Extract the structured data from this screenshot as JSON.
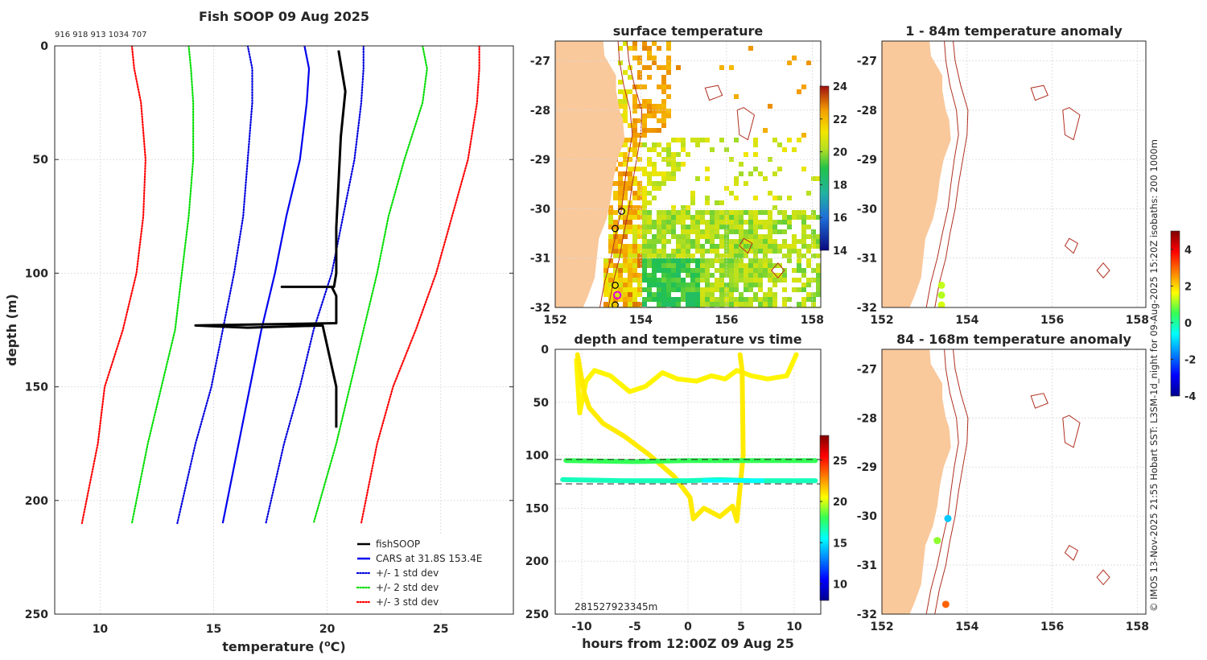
{
  "figure": {
    "credit": "© IMOS 13-Nov-2025 21:55 Hobart SST: L3SM-1d_night for 09-Aug-2025 15:20Z isobaths: 200  1000m"
  },
  "chart_data": [
    {
      "id": "profile",
      "type": "line",
      "title": "Fish SOOP 09 Aug 2025",
      "subtitle": "916 918 913 1034 707",
      "xlabel": "temperature (°C)",
      "ylabel": "depth (m)",
      "xlim": [
        8,
        28.2
      ],
      "ylim": [
        250,
        0
      ],
      "xticks": [
        10,
        15,
        20,
        25
      ],
      "yticks": [
        0,
        50,
        100,
        150,
        200,
        250
      ],
      "grid": true,
      "legend_position": "bottom-right",
      "series": [
        {
          "name": "+/- 3 std dev",
          "color": "#ff0000",
          "style": "dotted",
          "depth": [
            0,
            10,
            25,
            50,
            75,
            100,
            125,
            150,
            175,
            210
          ],
          "temp": [
            11.4,
            11.5,
            11.8,
            12.0,
            11.9,
            11.6,
            11.0,
            10.2,
            9.9,
            9.2
          ]
        },
        {
          "name": "+/- 2 std dev",
          "color": "#00dd00",
          "style": "dotted",
          "depth": [
            0,
            10,
            25,
            50,
            75,
            100,
            125,
            150,
            175,
            210
          ],
          "temp": [
            13.9,
            14.0,
            14.1,
            14.1,
            13.9,
            13.6,
            13.3,
            12.7,
            12.1,
            11.4
          ]
        },
        {
          "name": "+/- 1 std dev",
          "color": "#0000dd",
          "style": "dotted",
          "depth": [
            0,
            10,
            25,
            50,
            75,
            100,
            125,
            150,
            175,
            210
          ],
          "temp": [
            16.5,
            16.7,
            16.7,
            16.5,
            16.3,
            15.9,
            15.4,
            14.9,
            14.2,
            13.4
          ]
        },
        {
          "name": "CARS at 31.8S 153.4E",
          "color": "#0000ee",
          "style": "solid",
          "depth": [
            0,
            10,
            25,
            50,
            75,
            100,
            125,
            150,
            175,
            210
          ],
          "temp": [
            19.0,
            19.2,
            19.1,
            18.8,
            18.2,
            17.7,
            17.1,
            16.6,
            16.1,
            15.4
          ]
        },
        {
          "name": "+/- 1 std dev (warm)",
          "color": "#0000dd",
          "style": "dotted",
          "depth": [
            0,
            10,
            25,
            50,
            75,
            100,
            125,
            150,
            175,
            210
          ],
          "temp": [
            21.6,
            21.6,
            21.5,
            21.2,
            20.7,
            20.2,
            19.4,
            18.8,
            18.1,
            17.3
          ]
        },
        {
          "name": "+/- 2 std dev (warm)",
          "color": "#00dd00",
          "style": "dotted",
          "depth": [
            0,
            10,
            25,
            50,
            75,
            100,
            125,
            150,
            175,
            210
          ],
          "temp": [
            24.2,
            24.4,
            24.2,
            23.4,
            22.7,
            22.2,
            21.6,
            21.0,
            20.4,
            19.4
          ]
        },
        {
          "name": "+/- 3 std dev (warm)",
          "color": "#ff0000",
          "style": "dotted",
          "depth": [
            0,
            10,
            25,
            50,
            75,
            100,
            125,
            150,
            175,
            210
          ],
          "temp": [
            26.7,
            26.7,
            26.6,
            26.2,
            25.5,
            24.8,
            23.9,
            22.9,
            22.2,
            21.5
          ]
        },
        {
          "name": "fishSOOP",
          "color": "#000000",
          "style": "solid-thick",
          "depth": [
            2,
            20,
            40,
            60,
            80,
            100,
            106,
            106,
            106,
            110,
            122,
            123,
            124,
            123,
            150,
            168
          ],
          "temp": [
            20.5,
            20.8,
            20.6,
            20.5,
            20.4,
            20.4,
            20.3,
            18.0,
            20.2,
            20.4,
            20.4,
            14.2,
            16.5,
            19.8,
            20.4,
            20.4
          ]
        }
      ],
      "legend": [
        "fishSOOP",
        "CARS at 31.8S 153.4E",
        "+/- 1 std dev",
        "+/- 2 std dev",
        "+/- 3 std dev"
      ]
    },
    {
      "id": "sst",
      "type": "heatmap",
      "title": "surface temperature",
      "xlim": [
        152,
        158.2
      ],
      "ylim": [
        -32,
        -26.6
      ],
      "xticks": [
        152,
        154,
        156,
        158
      ],
      "yticks": [
        -27,
        -28,
        -29,
        -30,
        -31,
        -32
      ],
      "colorbar": {
        "min": 14,
        "max": 24,
        "ticks": [
          14,
          16,
          18,
          20,
          22,
          24
        ]
      },
      "stations": [
        {
          "lon": 153.55,
          "lat": -30.05
        },
        {
          "lon": 153.4,
          "lat": -30.4
        },
        {
          "lon": 153.4,
          "lat": -31.55
        },
        {
          "lon": 153.4,
          "lat": -31.95
        }
      ],
      "highlight": {
        "lon": 153.45,
        "lat": -31.75
      }
    },
    {
      "id": "depth_time",
      "type": "scatter",
      "title": "depth and temperature vs time",
      "xlabel": "hours from 12:00Z 09 Aug 25",
      "xlim": [
        -12.5,
        12.5
      ],
      "ylim": [
        250,
        0
      ],
      "xticks": [
        -10,
        -5,
        0,
        5,
        10
      ],
      "yticks": [
        0,
        50,
        100,
        150,
        200,
        250
      ],
      "reference_depths": [
        104,
        127
      ],
      "annotation": "2815279233",
      "annotation_suffix": "45m",
      "colorbar": {
        "min": 8,
        "max": 28,
        "ticks": [
          10,
          15,
          20,
          25
        ]
      },
      "tracks": [
        {
          "temp": 20.7,
          "points": [
            [
              -10.5,
              10
            ],
            [
              -10.2,
              60
            ],
            [
              -9.6,
              30
            ],
            [
              -8.8,
              20
            ],
            [
              -7.3,
              25
            ],
            [
              -5.5,
              40
            ],
            [
              -4.0,
              35
            ],
            [
              -2.4,
              22
            ],
            [
              -1.0,
              28
            ],
            [
              0.8,
              30
            ],
            [
              2.2,
              25
            ],
            [
              3.5,
              28
            ],
            [
              4.6,
              20
            ],
            [
              6.0,
              25
            ],
            [
              7.5,
              28
            ],
            [
              9.3,
              25
            ],
            [
              10.2,
              5
            ]
          ]
        },
        {
          "temp": 20.9,
          "points": [
            [
              -10.4,
              5
            ],
            [
              -9.8,
              40
            ],
            [
              -9.3,
              55
            ],
            [
              -8.0,
              70
            ],
            [
              -6.0,
              82
            ],
            [
              -3.6,
              100
            ],
            [
              -1.3,
              120
            ],
            [
              0.2,
              140
            ],
            [
              0.5,
              160
            ],
            [
              1.5,
              150
            ],
            [
              3.0,
              158
            ],
            [
              4.2,
              148
            ],
            [
              4.6,
              162
            ],
            [
              5.2,
              100
            ],
            [
              5.1,
              20
            ],
            [
              4.9,
              5
            ]
          ]
        },
        {
          "temp": 18.0,
          "points": [
            [
              -11.5,
              105
            ],
            [
              -5.0,
              106
            ],
            [
              0,
              105
            ],
            [
              5.0,
              105
            ],
            [
              10.0,
              105
            ],
            [
              12.0,
              105
            ]
          ]
        },
        {
          "temp": 16.5,
          "points": [
            [
              -11.8,
              123
            ],
            [
              -6.0,
              124
            ],
            [
              0,
              124
            ],
            [
              3.0,
              123
            ],
            [
              6.0,
              124
            ],
            [
              12.0,
              124
            ]
          ]
        }
      ]
    },
    {
      "id": "anom_shallow",
      "type": "scatter",
      "title": "1 - 84m temperature anomaly",
      "xlim": [
        152,
        158.2
      ],
      "ylim": [
        -32,
        -26.6
      ],
      "xticks": [
        152,
        154,
        156,
        158
      ],
      "yticks": [
        -27,
        -28,
        -29,
        -30,
        -31,
        -32
      ],
      "points": [
        {
          "lon": 153.4,
          "lat": -31.55,
          "anomaly": 1.3
        },
        {
          "lon": 153.4,
          "lat": -31.75,
          "anomaly": 1.2
        },
        {
          "lon": 153.4,
          "lat": -31.95,
          "anomaly": 1.4
        }
      ]
    },
    {
      "id": "anom_deep",
      "type": "scatter",
      "title": "84 - 168m temperature anomaly",
      "xlim": [
        152,
        158.2
      ],
      "ylim": [
        -32,
        -26.6
      ],
      "xticks": [
        152,
        154,
        156,
        158
      ],
      "yticks": [
        -27,
        -28,
        -29,
        -30,
        -31,
        -32
      ],
      "points": [
        {
          "lon": 153.55,
          "lat": -30.05,
          "anomaly": -1.1
        },
        {
          "lon": 153.3,
          "lat": -30.5,
          "anomaly": 1.0
        },
        {
          "lon": 153.5,
          "lat": -31.8,
          "anomaly": 3.0
        }
      ],
      "colorbar": {
        "min": -4,
        "max": 5,
        "ticks": [
          -4,
          -2,
          0,
          2,
          4
        ]
      }
    }
  ]
}
